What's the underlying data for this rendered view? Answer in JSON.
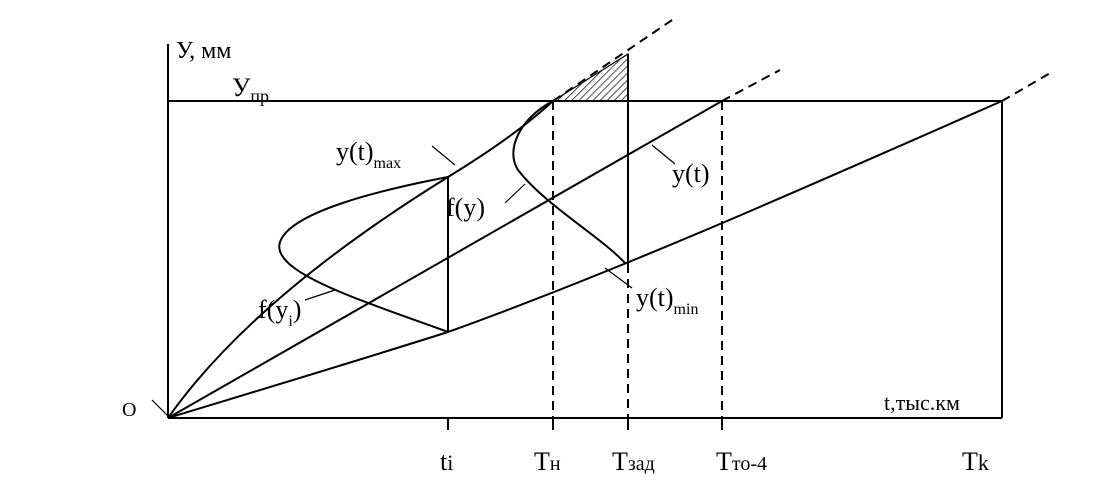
{
  "diagram": {
    "y_axis_label": "У, мм",
    "x_axis_label": "t,тыс.км",
    "origin_label": "О",
    "limit_label": "У",
    "limit_sub": "пр",
    "curve_labels": {
      "ymax_main": "y(t)",
      "ymax_sub": "max",
      "ymin_main": "y(t)",
      "ymin_sub": "min",
      "ymean": "y(t)",
      "fy": "f(y)",
      "fyi_main": "f(y",
      "fyi_sub": "i",
      "fyi_close": ")"
    },
    "x_ticks": {
      "ti_main": "t",
      "ti_sub": "i",
      "tn_main": "Т",
      "tn_sub": "н",
      "tzad_main": "Т",
      "tzad_sub": "зад",
      "tto_main": "Т",
      "tto_sub": "то-4",
      "tk_main": "Т",
      "tk_sub": "k"
    }
  }
}
